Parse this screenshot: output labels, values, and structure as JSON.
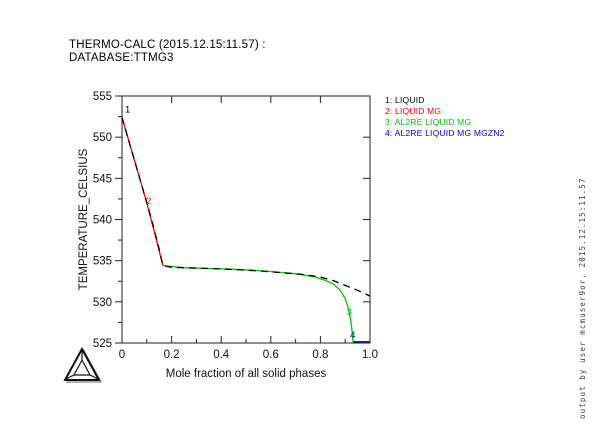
{
  "header": {
    "line1": "THERMO-CALC (2015.12.15:11.57) :",
    "line2": "DATABASE:TTMG3"
  },
  "chart_data": {
    "type": "line",
    "title": "THERMO-CALC (2015.12.15:11.57) : DATABASE:TTMG3",
    "xlabel": "Mole fraction of all solid phases",
    "ylabel": "TEMPERATURE_CELSIUS",
    "xlim": [
      0,
      1.0
    ],
    "ylim": [
      525,
      555
    ],
    "grid": false,
    "legend_position": "top-right",
    "x_ticks": [
      {
        "v": 0,
        "label": "0"
      },
      {
        "v": 0.2,
        "label": "0.2"
      },
      {
        "v": 0.4,
        "label": "0.4"
      },
      {
        "v": 0.6,
        "label": "0.6"
      },
      {
        "v": 0.8,
        "label": "0.8"
      },
      {
        "v": 1.0,
        "label": "1.0"
      }
    ],
    "x_minor_step": 0.1,
    "y_ticks": [
      {
        "v": 525,
        "label": "525"
      },
      {
        "v": 530,
        "label": "530"
      },
      {
        "v": 535,
        "label": "535"
      },
      {
        "v": 540,
        "label": "540"
      },
      {
        "v": 545,
        "label": "545"
      },
      {
        "v": 550,
        "label": "550"
      },
      {
        "v": 555,
        "label": "555"
      }
    ],
    "y_minor_step": 2.5,
    "series": [
      {
        "id": "1",
        "name": "LIQUID",
        "color": "#000000",
        "line_style": "dashed",
        "points": [
          [
            0,
            552.4
          ],
          [
            0.03,
            549.3
          ],
          [
            0.06,
            546.2
          ],
          [
            0.09,
            543.1
          ],
          [
            0.12,
            539.9
          ],
          [
            0.145,
            537.0
          ],
          [
            0.165,
            534.4
          ],
          [
            0.2,
            534.2
          ],
          [
            0.3,
            534.1
          ],
          [
            0.4,
            534.0
          ],
          [
            0.5,
            533.85
          ],
          [
            0.6,
            533.65
          ],
          [
            0.7,
            533.4
          ],
          [
            0.75,
            533.25
          ],
          [
            0.8,
            533.0
          ],
          [
            0.85,
            532.6
          ],
          [
            0.9,
            532.0
          ],
          [
            0.95,
            531.4
          ],
          [
            1.0,
            530.7
          ]
        ]
      },
      {
        "id": "2",
        "name": "LIQUID MG",
        "color": "#ff0000",
        "line_style": "solid",
        "points": [
          [
            0,
            552.4
          ],
          [
            0.05,
            547.2
          ],
          [
            0.1,
            542.0
          ],
          [
            0.14,
            537.4
          ],
          [
            0.165,
            534.4
          ]
        ]
      },
      {
        "id": "3",
        "name": "AL2RE LIQUID MG",
        "color": "#00c300",
        "line_style": "solid",
        "points": [
          [
            0.165,
            534.4
          ],
          [
            0.25,
            534.15
          ],
          [
            0.35,
            534.05
          ],
          [
            0.45,
            533.95
          ],
          [
            0.55,
            533.8
          ],
          [
            0.65,
            533.55
          ],
          [
            0.72,
            533.35
          ],
          [
            0.78,
            533.0
          ],
          [
            0.82,
            532.6
          ],
          [
            0.855,
            532.1
          ],
          [
            0.88,
            531.4
          ],
          [
            0.9,
            530.4
          ],
          [
            0.913,
            529.2
          ],
          [
            0.922,
            527.8
          ],
          [
            0.928,
            526.4
          ],
          [
            0.931,
            525.2
          ]
        ]
      },
      {
        "id": "4",
        "name": "AL2RE LIQUID MG MGZN2",
        "color": "#0000ee",
        "line_style": "solid",
        "points": [
          [
            0.931,
            525.15
          ],
          [
            1.0,
            525.15
          ]
        ]
      }
    ],
    "curve_labels": [
      {
        "text": "1",
        "x": 0.012,
        "y": 553.0,
        "color": "#000000"
      },
      {
        "text": "2",
        "x": 0.097,
        "y": 541.9,
        "color": "#ff0000"
      },
      {
        "text": "3",
        "x": 0.905,
        "y": 528.4,
        "color": "#00c300"
      },
      {
        "text": "4",
        "x": 0.92,
        "y": 525.6,
        "color": "#0000ee"
      }
    ]
  },
  "legend": {
    "items": [
      {
        "id": "1",
        "label": "1: LIQUID",
        "color": "#000000"
      },
      {
        "id": "2",
        "label": "2: LIQUID MG",
        "color": "#ff0000"
      },
      {
        "id": "3",
        "label": "3: AL2RE LIQUID MG",
        "color": "#00c300"
      },
      {
        "id": "4",
        "label": "4: AL2RE LIQUID MG MGZN2",
        "color": "#0000ee"
      }
    ]
  },
  "footer": {
    "vertical_text": "output by user mcmuser9or, 2015.12.15:11.57"
  },
  "logo": {
    "icon": "thermo-calc-triangle-logo"
  }
}
